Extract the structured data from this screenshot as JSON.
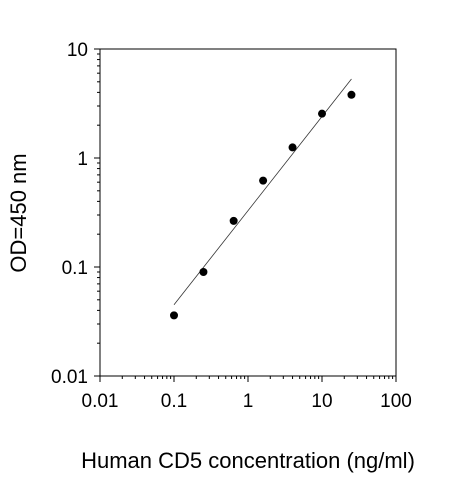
{
  "chart_data": {
    "type": "scatter",
    "xlabel": "Human CD5 concentration (ng/ml)",
    "ylabel": "OD=450 nm",
    "x_scale": "log",
    "y_scale": "log",
    "xlim": [
      0.01,
      100
    ],
    "ylim": [
      0.01,
      10
    ],
    "x_ticks": [
      "0.01",
      "0.1",
      "1",
      "10",
      "100"
    ],
    "y_ticks": [
      "0.01",
      "0.1",
      "1",
      "10"
    ],
    "grid": false,
    "legend": "none",
    "series": [
      {
        "points": [
          {
            "x": 0.1,
            "y": 0.036
          },
          {
            "x": 0.25,
            "y": 0.09
          },
          {
            "x": 0.64,
            "y": 0.265
          },
          {
            "x": 1.6,
            "y": 0.62
          },
          {
            "x": 4.0,
            "y": 1.25
          },
          {
            "x": 10.0,
            "y": 2.55
          },
          {
            "x": 25.0,
            "y": 3.8
          }
        ]
      }
    ],
    "trendline": {
      "type": "linear-fit-loglog",
      "points": [
        {
          "x": 0.1,
          "y": 0.045
        },
        {
          "x": 25.0,
          "y": 5.3
        }
      ]
    },
    "colors": {
      "markers": "#000000",
      "line": "#333333",
      "axes": "#000000"
    }
  }
}
